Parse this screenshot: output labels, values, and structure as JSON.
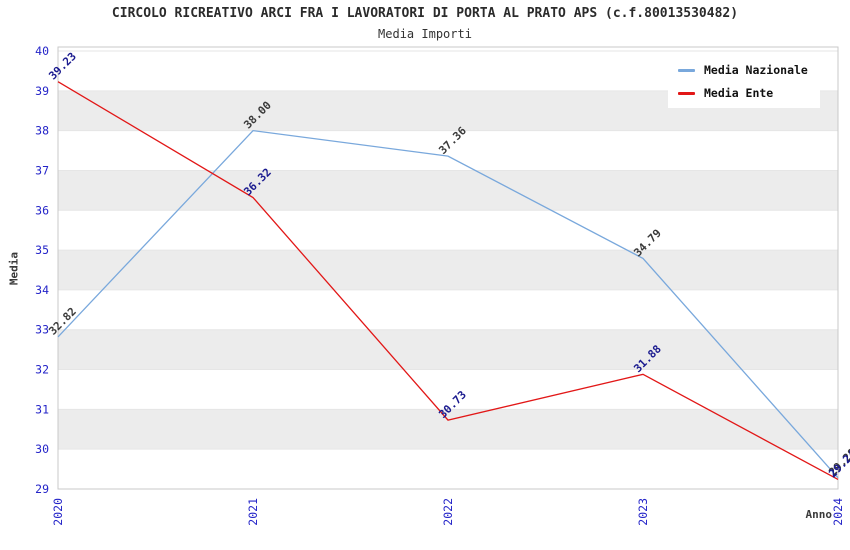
{
  "chart_data": {
    "type": "line",
    "title": "CIRCOLO RICREATIVO ARCI FRA I LAVORATORI DI PORTA AL PRATO APS (c.f.80013530482)",
    "subtitle": "Media Importi",
    "xlabel": "Anno",
    "ylabel": "Media",
    "x": [
      2020,
      2021,
      2022,
      2023,
      2024
    ],
    "yticks": [
      29,
      30,
      31,
      32,
      33,
      34,
      35,
      36,
      37,
      38,
      39,
      40
    ],
    "ylim": [
      29,
      40
    ],
    "grid": "alternating-horizontal-bands",
    "legend_position": "top-right",
    "series": [
      {
        "name": "Media Nazionale",
        "color": "#79A8DC",
        "label_color": "#3A3A3A",
        "values": [
          32.82,
          38.0,
          37.36,
          34.79,
          29.28
        ]
      },
      {
        "name": "Media Ente",
        "color": "#E21717",
        "label_color": "#1A1A8F",
        "values": [
          39.23,
          36.32,
          30.73,
          31.88,
          29.24
        ]
      }
    ],
    "style": {
      "band_color": "#ECECEC",
      "gridline_color": "#E6E6E6",
      "frame_color": "#C9C9C9",
      "tick_color": "#2424C8",
      "background": "#FFFFFF"
    }
  }
}
